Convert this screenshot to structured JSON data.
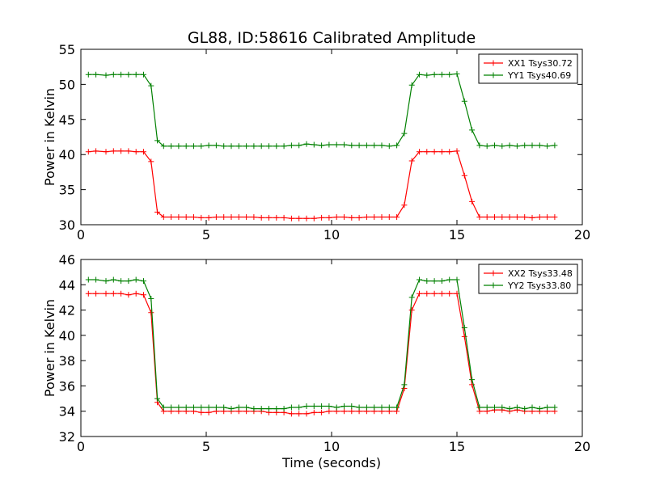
{
  "figure": {
    "title": "GL88, ID:58616 Calibrated Amplitude"
  },
  "chart_data": [
    {
      "type": "line",
      "xlabel": "",
      "ylabel": "Power in Kelvin",
      "xlim": [
        0,
        20
      ],
      "ylim": [
        30,
        55
      ],
      "xticks": [
        0,
        5,
        10,
        15,
        20
      ],
      "yticks": [
        30,
        35,
        40,
        45,
        50,
        55
      ],
      "grid": false,
      "legend_position": "top-right",
      "x": [
        0.3,
        0.6,
        1.0,
        1.3,
        1.6,
        1.9,
        2.2,
        2.5,
        2.8,
        3.05,
        3.3,
        3.6,
        3.9,
        4.2,
        4.5,
        4.8,
        5.1,
        5.4,
        5.7,
        6.0,
        6.3,
        6.6,
        6.9,
        7.2,
        7.5,
        7.8,
        8.1,
        8.4,
        8.7,
        9.0,
        9.3,
        9.6,
        9.9,
        10.2,
        10.5,
        10.8,
        11.1,
        11.4,
        11.7,
        12.0,
        12.3,
        12.6,
        12.9,
        13.2,
        13.5,
        13.8,
        14.1,
        14.4,
        14.7,
        15.0,
        15.3,
        15.6,
        15.9,
        16.2,
        16.5,
        16.8,
        17.1,
        17.4,
        17.7,
        18.0,
        18.3,
        18.6,
        18.9
      ],
      "series": [
        {
          "name": "XX1 Tsys30.72",
          "color": "#ff0000",
          "values": [
            40.4,
            40.5,
            40.4,
            40.5,
            40.5,
            40.5,
            40.4,
            40.4,
            39.0,
            31.8,
            31.1,
            31.1,
            31.1,
            31.1,
            31.1,
            31.0,
            31.0,
            31.1,
            31.1,
            31.1,
            31.1,
            31.1,
            31.1,
            31.0,
            31.0,
            31.0,
            31.0,
            30.9,
            30.9,
            30.9,
            30.9,
            31.0,
            31.0,
            31.1,
            31.1,
            31.0,
            31.0,
            31.1,
            31.1,
            31.1,
            31.1,
            31.1,
            32.8,
            39.1,
            40.4,
            40.4,
            40.4,
            40.4,
            40.4,
            40.5,
            37.0,
            33.3,
            31.1,
            31.1,
            31.1,
            31.1,
            31.1,
            31.1,
            31.1,
            31.0,
            31.1,
            31.1,
            31.1
          ]
        },
        {
          "name": "YY1 Tsys40.69",
          "color": "#008000",
          "values": [
            51.4,
            51.4,
            51.3,
            51.4,
            51.4,
            51.4,
            51.4,
            51.4,
            49.8,
            42.0,
            41.2,
            41.2,
            41.2,
            41.2,
            41.2,
            41.2,
            41.3,
            41.3,
            41.2,
            41.2,
            41.2,
            41.2,
            41.2,
            41.2,
            41.2,
            41.2,
            41.2,
            41.3,
            41.3,
            41.5,
            41.4,
            41.3,
            41.4,
            41.4,
            41.4,
            41.3,
            41.3,
            41.3,
            41.3,
            41.3,
            41.2,
            41.3,
            43.0,
            49.9,
            51.4,
            51.3,
            51.4,
            51.4,
            51.4,
            51.5,
            47.6,
            43.5,
            41.3,
            41.2,
            41.3,
            41.2,
            41.3,
            41.2,
            41.3,
            41.3,
            41.3,
            41.2,
            41.3
          ]
        }
      ]
    },
    {
      "type": "line",
      "xlabel": "Time (seconds)",
      "ylabel": "Power in Kelvin",
      "xlim": [
        0,
        20
      ],
      "ylim": [
        32,
        46
      ],
      "xticks": [
        0,
        5,
        10,
        15,
        20
      ],
      "yticks": [
        32,
        34,
        36,
        38,
        40,
        42,
        44,
        46
      ],
      "grid": false,
      "legend_position": "top-right",
      "x": [
        0.3,
        0.6,
        1.0,
        1.3,
        1.6,
        1.9,
        2.2,
        2.5,
        2.8,
        3.05,
        3.3,
        3.6,
        3.9,
        4.2,
        4.5,
        4.8,
        5.1,
        5.4,
        5.7,
        6.0,
        6.3,
        6.6,
        6.9,
        7.2,
        7.5,
        7.8,
        8.1,
        8.4,
        8.7,
        9.0,
        9.3,
        9.6,
        9.9,
        10.2,
        10.5,
        10.8,
        11.1,
        11.4,
        11.7,
        12.0,
        12.3,
        12.6,
        12.9,
        13.2,
        13.5,
        13.8,
        14.1,
        14.4,
        14.7,
        15.0,
        15.3,
        15.6,
        15.9,
        16.2,
        16.5,
        16.8,
        17.1,
        17.4,
        17.7,
        18.0,
        18.3,
        18.6,
        18.9
      ],
      "series": [
        {
          "name": "XX2 Tsys33.48",
          "color": "#ff0000",
          "values": [
            43.3,
            43.3,
            43.3,
            43.3,
            43.3,
            43.2,
            43.3,
            43.2,
            41.8,
            34.7,
            34.0,
            34.0,
            34.0,
            34.0,
            34.0,
            33.9,
            33.9,
            34.0,
            34.0,
            34.0,
            34.0,
            34.0,
            34.0,
            34.0,
            33.9,
            33.9,
            33.9,
            33.8,
            33.8,
            33.8,
            33.9,
            33.9,
            34.0,
            34.0,
            34.0,
            34.0,
            34.0,
            34.0,
            34.0,
            34.0,
            34.0,
            34.0,
            35.8,
            42.0,
            43.3,
            43.3,
            43.3,
            43.3,
            43.3,
            43.3,
            39.9,
            36.1,
            34.0,
            34.0,
            34.1,
            34.1,
            34.0,
            34.1,
            34.0,
            34.0,
            34.0,
            34.0,
            34.0
          ]
        },
        {
          "name": "YY2 Tsys33.80",
          "color": "#008000",
          "values": [
            44.4,
            44.4,
            44.3,
            44.4,
            44.3,
            44.3,
            44.4,
            44.3,
            42.9,
            35.0,
            34.3,
            34.3,
            34.3,
            34.3,
            34.3,
            34.3,
            34.3,
            34.3,
            34.3,
            34.2,
            34.3,
            34.3,
            34.2,
            34.2,
            34.2,
            34.2,
            34.2,
            34.3,
            34.3,
            34.4,
            34.4,
            34.4,
            34.4,
            34.3,
            34.4,
            34.4,
            34.3,
            34.3,
            34.3,
            34.3,
            34.3,
            34.3,
            36.1,
            43.0,
            44.4,
            44.3,
            44.3,
            44.3,
            44.4,
            44.4,
            40.6,
            36.5,
            34.3,
            34.3,
            34.3,
            34.3,
            34.2,
            34.3,
            34.2,
            34.3,
            34.2,
            34.3,
            34.3
          ]
        }
      ]
    }
  ]
}
